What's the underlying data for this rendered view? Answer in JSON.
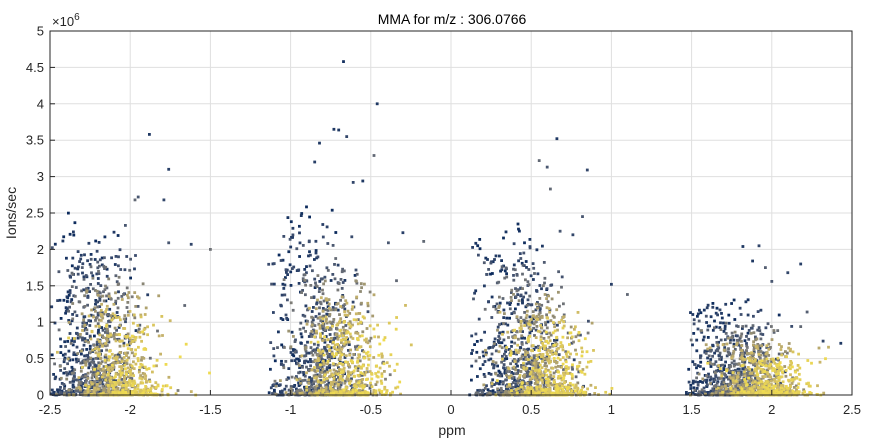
{
  "chart_data": {
    "type": "scatter",
    "title": "MMA for m/z : 306.0766",
    "xlabel": "ppm",
    "ylabel": "Ions/sec",
    "xlim": [
      -2.5,
      2.5
    ],
    "ylim": [
      0,
      5000000
    ],
    "xticks": [
      -2.5,
      -2,
      -1.5,
      -1,
      -0.5,
      0,
      0.5,
      1,
      1.5,
      2,
      2.5
    ],
    "xtick_labels": [
      "-2.5",
      "-2",
      "-1.5",
      "-1",
      "-0.5",
      "0",
      "0.5",
      "1",
      "1.5",
      "2",
      "2.5"
    ],
    "yticks": [
      0,
      500000,
      1000000,
      1500000,
      2000000,
      2500000,
      3000000,
      3500000,
      4000000,
      4500000,
      5000000
    ],
    "ytick_labels": [
      "0",
      "0.5",
      "1",
      "1.5",
      "2",
      "2.5",
      "3",
      "3.5",
      "4",
      "4.5",
      "5"
    ],
    "y_exponent_base": "×10",
    "y_exponent_power": "6",
    "grid": true,
    "colormap": [
      "#0b2a5c",
      "#3c4d6e",
      "#7a7a78",
      "#c8b46a",
      "#f0dc50"
    ],
    "clusters": [
      {
        "center_ppm": -2.2,
        "width_ppm": 0.35,
        "max_y": 2200000
      },
      {
        "center_ppm": -0.8,
        "width_ppm": 0.35,
        "max_y": 2300000
      },
      {
        "center_ppm": 0.45,
        "width_ppm": 0.35,
        "max_y": 2100000
      },
      {
        "center_ppm": 1.8,
        "width_ppm": 0.35,
        "max_y": 1200000
      }
    ],
    "outliers": [
      {
        "x": -1.88,
        "y": 3580000,
        "c": 0.1
      },
      {
        "x": -1.76,
        "y": 3100000,
        "c": 0.15
      },
      {
        "x": -1.95,
        "y": 2720000,
        "c": 0.3
      },
      {
        "x": -1.97,
        "y": 2680000,
        "c": 0.4
      },
      {
        "x": -1.79,
        "y": 2680000,
        "c": 0.2
      },
      {
        "x": -2.03,
        "y": 2330000,
        "c": 0.3
      },
      {
        "x": -1.62,
        "y": 2070000,
        "c": 0.2
      },
      {
        "x": -1.5,
        "y": 2000000,
        "c": 0.45
      },
      {
        "x": -1.66,
        "y": 1230000,
        "c": 0.4
      },
      {
        "x": -1.76,
        "y": 2090000,
        "c": 0.3
      },
      {
        "x": -0.67,
        "y": 4580000,
        "c": 0.05
      },
      {
        "x": -0.46,
        "y": 4000000,
        "c": 0.1
      },
      {
        "x": -0.73,
        "y": 3650000,
        "c": 0.1
      },
      {
        "x": -0.7,
        "y": 3640000,
        "c": 0.1
      },
      {
        "x": -0.65,
        "y": 3550000,
        "c": 0.2
      },
      {
        "x": -0.82,
        "y": 3460000,
        "c": 0.1
      },
      {
        "x": -0.48,
        "y": 3290000,
        "c": 0.4
      },
      {
        "x": -0.85,
        "y": 3200000,
        "c": 0.15
      },
      {
        "x": -0.61,
        "y": 2920000,
        "c": 0.2
      },
      {
        "x": -0.55,
        "y": 2940000,
        "c": 0.1
      },
      {
        "x": -0.3,
        "y": 2230000,
        "c": 0.15
      },
      {
        "x": -0.17,
        "y": 2110000,
        "c": 0.4
      },
      {
        "x": -0.39,
        "y": 2090000,
        "c": 0.3
      },
      {
        "x": -0.34,
        "y": 1570000,
        "c": 0.4
      },
      {
        "x": 0.66,
        "y": 3520000,
        "c": 0.1
      },
      {
        "x": 0.55,
        "y": 3220000,
        "c": 0.4
      },
      {
        "x": 0.6,
        "y": 3130000,
        "c": 0.3
      },
      {
        "x": 0.85,
        "y": 3090000,
        "c": 0.2
      },
      {
        "x": 0.62,
        "y": 2830000,
        "c": 0.4
      },
      {
        "x": 0.82,
        "y": 2450000,
        "c": 0.3
      },
      {
        "x": 0.68,
        "y": 2250000,
        "c": 0.3
      },
      {
        "x": 0.76,
        "y": 2200000,
        "c": 0.2
      },
      {
        "x": 1.0,
        "y": 1520000,
        "c": 0.15
      },
      {
        "x": 1.1,
        "y": 1380000,
        "c": 0.4
      },
      {
        "x": 1.92,
        "y": 2050000,
        "c": 0.2
      },
      {
        "x": 1.82,
        "y": 2040000,
        "c": 0.1
      },
      {
        "x": 1.88,
        "y": 1840000,
        "c": 0.1
      },
      {
        "x": 2.18,
        "y": 1800000,
        "c": 0.15
      },
      {
        "x": 1.96,
        "y": 1750000,
        "c": 0.35
      },
      {
        "x": 2.1,
        "y": 1680000,
        "c": 0.2
      },
      {
        "x": 2.0,
        "y": 1560000,
        "c": 0.3
      },
      {
        "x": 2.22,
        "y": 1140000,
        "c": 0.35
      },
      {
        "x": 2.32,
        "y": 740000,
        "c": 0.2
      },
      {
        "x": 2.43,
        "y": 710000,
        "c": 0.1
      },
      {
        "x": 2.18,
        "y": 940000,
        "c": 0.4
      }
    ]
  }
}
